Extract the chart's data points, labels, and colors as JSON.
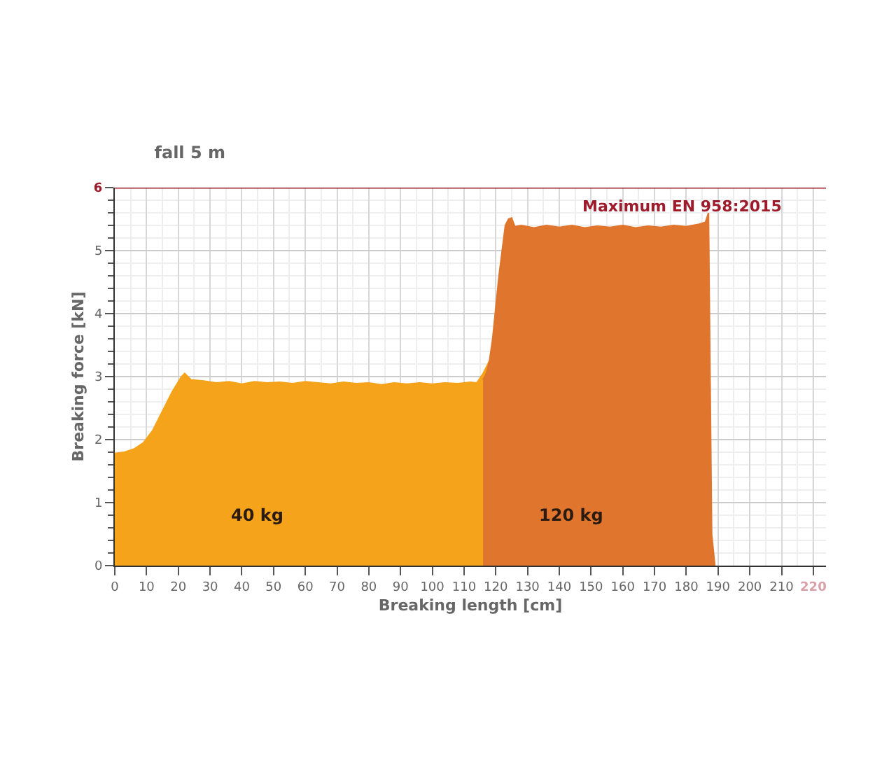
{
  "chart_data": {
    "type": "area",
    "title": "fall 5 m",
    "xlabel": "Breaking length [cm]",
    "ylabel": "Breaking force [kN]",
    "xlim": [
      0,
      224
    ],
    "ylim": [
      0,
      6
    ],
    "xticks": [
      0,
      10,
      20,
      30,
      40,
      50,
      60,
      70,
      80,
      90,
      100,
      110,
      120,
      130,
      140,
      150,
      160,
      170,
      180,
      190,
      200,
      210,
      220
    ],
    "yticks": [
      0,
      1,
      2,
      3,
      4,
      5,
      6
    ],
    "grid": true,
    "legend": false,
    "annotations": [
      "Maximum EN 958:2015"
    ],
    "series": [
      {
        "name": "40 kg",
        "color": "#f5a31a",
        "x": [
          0,
          3,
          6,
          9,
          12,
          15,
          18,
          21,
          22,
          24,
          28,
          32,
          36,
          40,
          44,
          48,
          52,
          56,
          60,
          64,
          68,
          72,
          76,
          80,
          84,
          88,
          92,
          96,
          100,
          104,
          108,
          112,
          114,
          116,
          118
        ],
        "values": [
          1.78,
          1.8,
          1.85,
          1.95,
          2.15,
          2.45,
          2.75,
          3.0,
          3.05,
          2.95,
          2.93,
          2.9,
          2.92,
          2.88,
          2.92,
          2.9,
          2.91,
          2.89,
          2.92,
          2.9,
          2.88,
          2.91,
          2.89,
          2.9,
          2.87,
          2.9,
          2.88,
          2.9,
          2.88,
          2.9,
          2.89,
          2.91,
          2.9,
          3.05,
          3.25
        ]
      },
      {
        "name": "120 kg",
        "color": "#e0752d",
        "x": [
          116,
          117,
          118,
          119,
          120,
          121,
          122,
          123,
          124,
          125,
          126,
          128,
          132,
          136,
          140,
          144,
          148,
          152,
          156,
          160,
          164,
          168,
          172,
          176,
          180,
          184,
          186,
          187,
          187.5,
          188,
          189
        ],
        "values": [
          2.95,
          3.05,
          3.25,
          3.6,
          4.1,
          4.6,
          5.0,
          5.4,
          5.5,
          5.52,
          5.38,
          5.4,
          5.36,
          5.4,
          5.37,
          5.4,
          5.36,
          5.39,
          5.37,
          5.4,
          5.36,
          5.39,
          5.37,
          5.4,
          5.38,
          5.42,
          5.45,
          5.6,
          3.0,
          0.5,
          0
        ]
      }
    ],
    "ref_lines": [
      {
        "axis": "y",
        "value": 6,
        "color": "#9e1b2b"
      },
      {
        "axis": "x",
        "value": 220,
        "color": "#d9a0a8"
      }
    ]
  }
}
